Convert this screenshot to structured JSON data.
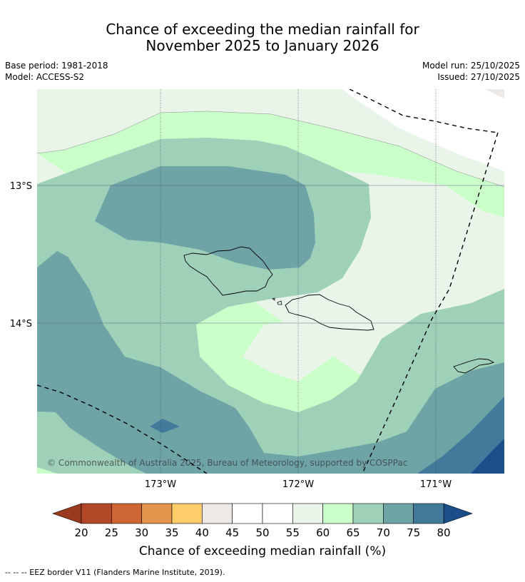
{
  "title_line1": "Chance of exceeding the median rainfall for",
  "title_line2": "November 2025 to January 2026",
  "meta": {
    "base_period": "Base period: 1981-2018",
    "model": "Model: ACCESS-S2",
    "model_run": "Model run: 25/10/2025",
    "issued": "Issued: 27/10/2025"
  },
  "map": {
    "lat_labels": [
      "13°S",
      "14°S"
    ],
    "lon_labels": [
      "173°W",
      "172°W",
      "171°W"
    ],
    "copyright": "© Commonwealth of Australia 2025, Bureau of Meteorology, supported by COSPPac",
    "colors": {
      "c40_45": "#ece9e6",
      "c45_55": "#ffffff",
      "c55_60": "#eaf5ea",
      "c60_65": "#caffca",
      "c65_70": "#9ed1b8",
      "c70_75": "#6fa4a7",
      "c75_80": "#417a9a",
      "c80": "#1a4f8a"
    }
  },
  "colorbar": {
    "ticks": [
      "20",
      "25",
      "30",
      "35",
      "40",
      "45",
      "50",
      "55",
      "60",
      "65",
      "70",
      "75",
      "80"
    ],
    "colors": [
      "#b04827",
      "#cd6633",
      "#e2944a",
      "#fccd6a",
      "#ece9e6",
      "#ffffff",
      "#ffffff",
      "#eaf5ea",
      "#caffca",
      "#9ed1b8",
      "#6fa4a7",
      "#417a9a"
    ],
    "below_color": "#993a20",
    "above_color": "#1a4f8a",
    "label": "Chance of exceeding median rainfall (%)"
  },
  "footnote": "--  --  -- EEZ border V11 (Flanders Marine Institute, 2019)."
}
